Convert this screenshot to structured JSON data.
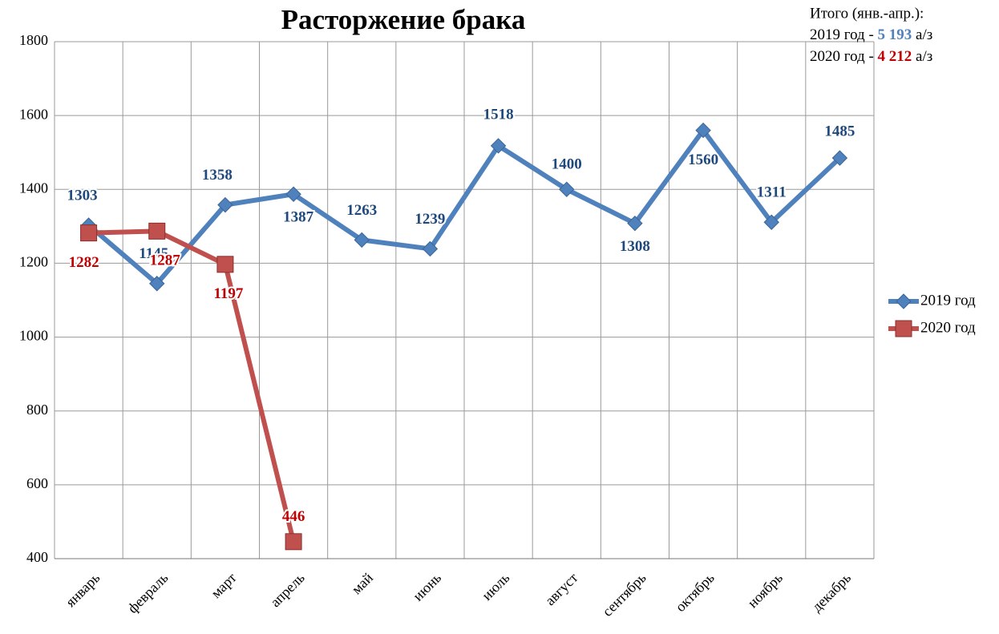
{
  "chart_data": {
    "type": "line",
    "title": "Расторжение брака",
    "categories": [
      "январь",
      "февраль",
      "март",
      "апрель",
      "май",
      "июнь",
      "июль",
      "август",
      "сентябрь",
      "октябрь",
      "ноябрь",
      "декабрь"
    ],
    "series": [
      {
        "name": "2019 год",
        "color": "#4f81bd",
        "marker": "diamond",
        "label_color": "#1f497d",
        "values": [
          1303,
          1145,
          1358,
          1387,
          1263,
          1239,
          1518,
          1400,
          1308,
          1560,
          1311,
          1485
        ]
      },
      {
        "name": "2020 год",
        "color": "#c0504d",
        "marker": "square",
        "label_color": "#c00000",
        "values": [
          1282,
          1287,
          1197,
          446,
          null,
          null,
          null,
          null,
          null,
          null,
          null,
          null
        ]
      }
    ],
    "ylim": [
      400,
      1800
    ],
    "yticks": [
      400,
      600,
      800,
      1000,
      1200,
      1400,
      1600,
      1800
    ],
    "grid": true,
    "legend": "right",
    "annotation": {
      "title": "Итого (янв.-апр.):",
      "lines": [
        {
          "label": "2019 год -",
          "total": "5 193",
          "unit": "а/з",
          "color": "#4f81bd"
        },
        {
          "label": "2020 год -",
          "total": "4 212",
          "unit": "а/з",
          "color": "#c00000"
        }
      ]
    }
  }
}
